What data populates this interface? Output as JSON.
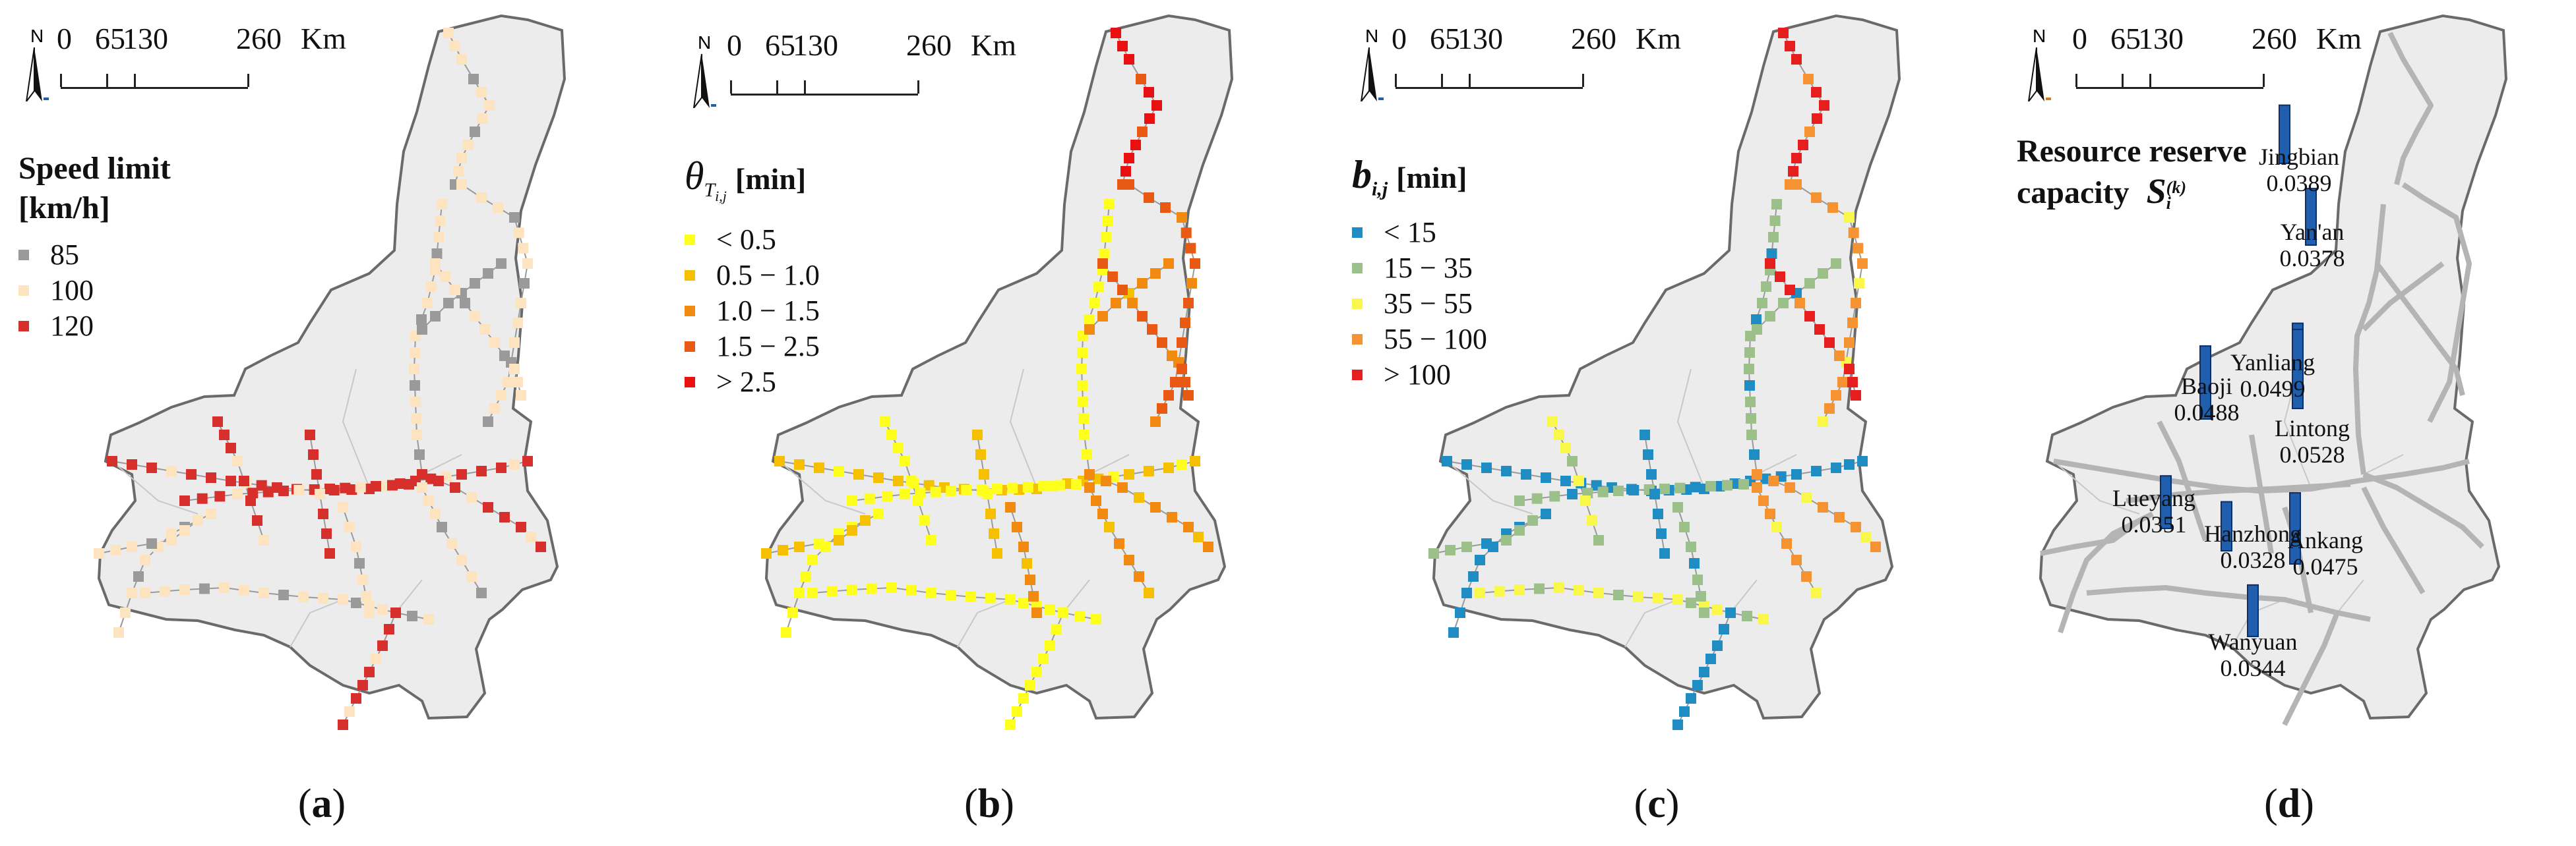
{
  "scale": {
    "ticks": [
      "0",
      "65",
      "130",
      "260"
    ],
    "unit": "Km"
  },
  "north_label": "N",
  "panels": [
    {
      "label": "a",
      "legend_title_line1": "Speed limit",
      "legend_title_line2": "[km/h]",
      "classes": [
        {
          "label": "85",
          "color": "#9a9a9a"
        },
        {
          "label": "100",
          "color": "#fde3c0"
        },
        {
          "label": "120",
          "color": "#d7302c"
        }
      ]
    },
    {
      "label": "b",
      "legend_symbol": "θ",
      "legend_subscript": "T",
      "legend_subsubscript": "i,j",
      "legend_unit": "[min]",
      "classes": [
        {
          "label": "< 0.5",
          "color": "#ffff1e"
        },
        {
          "label": "0.5 − 1.0",
          "color": "#f5c000"
        },
        {
          "label": "1.0 − 1.5",
          "color": "#f28a12"
        },
        {
          "label": "1.5 − 2.5",
          "color": "#e85a14"
        },
        {
          "label": "> 2.5",
          "color": "#e81010"
        }
      ]
    },
    {
      "label": "c",
      "legend_symbol": "b",
      "legend_subscript": "i,j",
      "legend_unit": "[min]",
      "classes": [
        {
          "label": "< 15",
          "color": "#1f8dc4"
        },
        {
          "label": "15 − 35",
          "color": "#9cc08a"
        },
        {
          "label": "35 − 55",
          "color": "#f9f74a"
        },
        {
          "label": "55 − 100",
          "color": "#f59232"
        },
        {
          "label": "> 100",
          "color": "#e61e1e"
        }
      ]
    },
    {
      "label": "d",
      "legend_title_line1": "Resource reserve",
      "legend_title_line2": "capacity",
      "legend_symbol": "S",
      "legend_subscript": "i",
      "legend_superscript": "(k)",
      "bar_color": "#1f5fae",
      "cities": [
        {
          "name": "Jingbian",
          "value": "0.0389",
          "capacity": 0.0389
        },
        {
          "name": "Yan'an",
          "value": "0.0378",
          "capacity": 0.0378
        },
        {
          "name": "Yanliang",
          "value": "0.0499",
          "capacity": 0.0499
        },
        {
          "name": "Baoji",
          "value": "0.0488",
          "capacity": 0.0488
        },
        {
          "name": "Lintong",
          "value": "0.0528",
          "capacity": 0.0528
        },
        {
          "name": "Lueyang",
          "value": "0.0351",
          "capacity": 0.0351
        },
        {
          "name": "Hanzhong",
          "value": "0.0328",
          "capacity": 0.0328
        },
        {
          "name": "Ankang",
          "value": "0.0475",
          "capacity": 0.0475
        },
        {
          "name": "Wanyuan",
          "value": "0.0344",
          "capacity": 0.0344
        }
      ]
    }
  ]
}
